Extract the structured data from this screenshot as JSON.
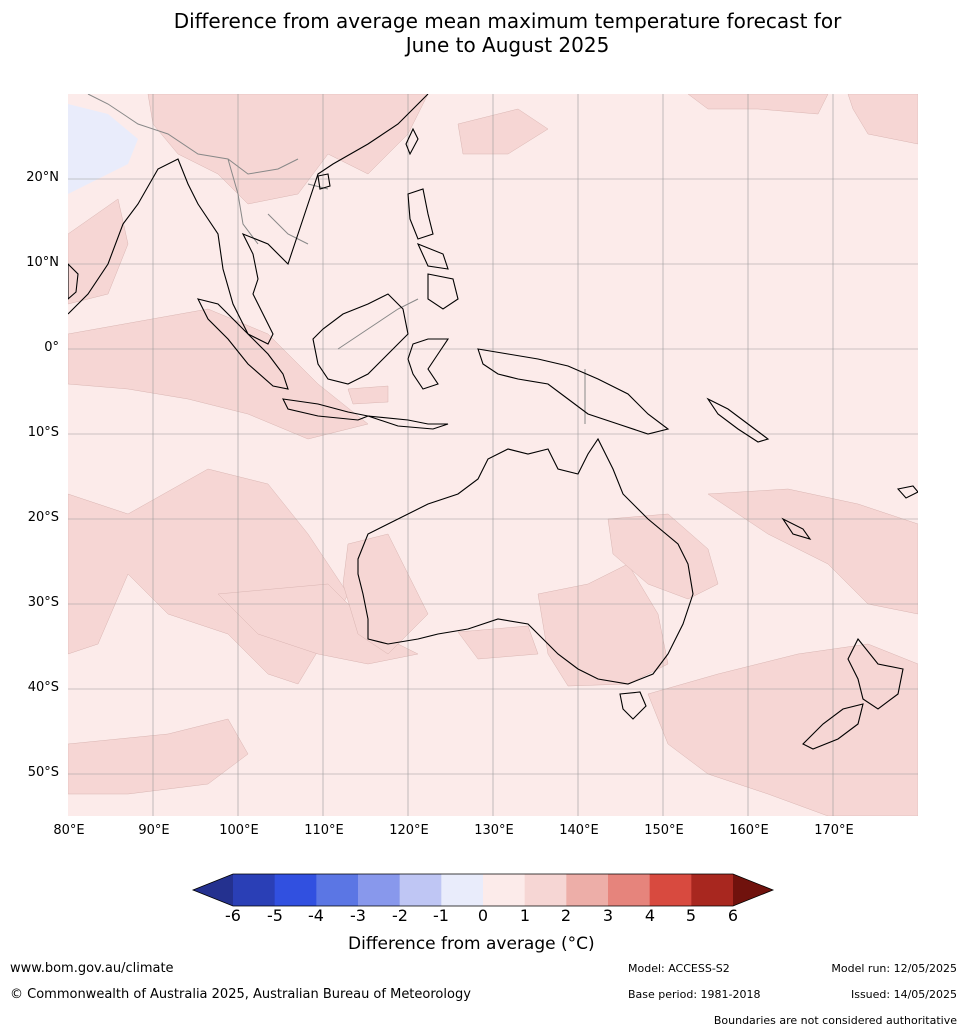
{
  "title_line1": "Difference from average mean maximum temperature forecast for",
  "title_line2": "June to August 2025",
  "lat_labels": [
    "20°N",
    "10°N",
    "0°",
    "10°S",
    "20°S",
    "30°S",
    "40°S",
    "50°S"
  ],
  "lon_labels": [
    "80°E",
    "90°E",
    "100°E",
    "110°E",
    "120°E",
    "130°E",
    "140°E",
    "150°E",
    "160°E",
    "170°E"
  ],
  "map": {
    "lon_range": [
      80,
      180
    ],
    "lat_range": [
      -55,
      30
    ],
    "background_color": "#fcebea",
    "anomaly_1_2_color": "#f6d6d4",
    "anomaly_neg1_0_color": "#e9ecfb",
    "coastline_color": "#000000",
    "boundary_color": "#888888"
  },
  "colorbar": {
    "ticks": [
      "-6",
      "-5",
      "-4",
      "-3",
      "-2",
      "-1",
      "0",
      "1",
      "2",
      "3",
      "4",
      "5",
      "6"
    ],
    "colors": [
      "#24318f",
      "#2a3fb6",
      "#3150e0",
      "#5b76e4",
      "#8898ec",
      "#bfc6f4",
      "#e9ecfb",
      "#fcebea",
      "#f6d6d4",
      "#edaea8",
      "#e6847c",
      "#d84a3f",
      "#a8271f",
      "#70120d"
    ],
    "label": "Difference from average (°C)"
  },
  "footer": {
    "url": "www.bom.gov.au/climate",
    "copyright": "© Commonwealth of Australia 2025, Australian Bureau of Meteorology",
    "model": "Model: ACCESS-S2",
    "base_period": "Base period: 1981-2018",
    "model_run": "Model run: 12/05/2025",
    "issued": "Issued: 14/05/2025",
    "boundaries": "Boundaries are not considered authoritative"
  }
}
